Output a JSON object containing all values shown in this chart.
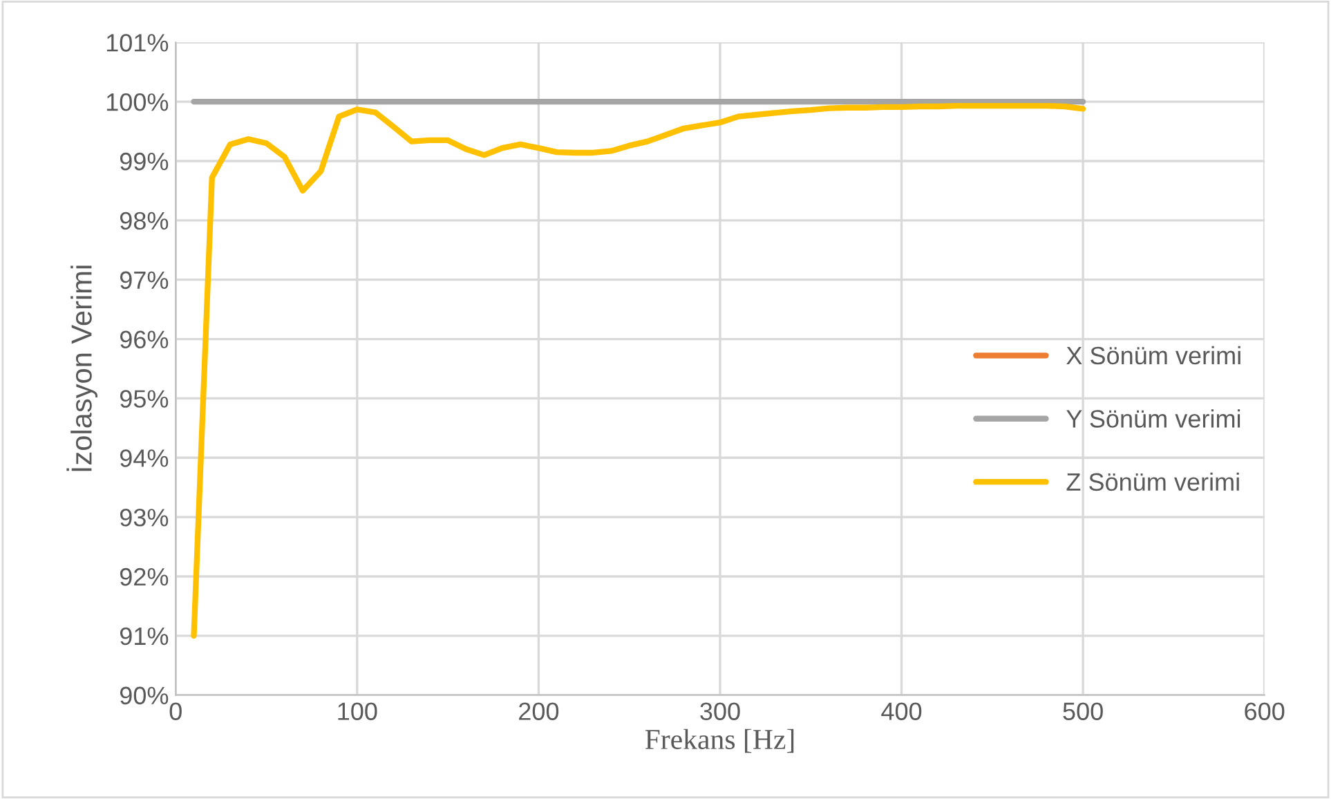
{
  "chart_data": {
    "type": "line",
    "xlabel": "Frekans [Hz]",
    "ylabel": "İzolasyon Verimi",
    "x": [
      10,
      20,
      30,
      40,
      50,
      60,
      70,
      80,
      90,
      100,
      110,
      120,
      130,
      140,
      150,
      160,
      170,
      180,
      190,
      200,
      210,
      220,
      230,
      240,
      250,
      260,
      270,
      280,
      290,
      300,
      310,
      320,
      330,
      340,
      350,
      360,
      370,
      380,
      390,
      400,
      410,
      420,
      430,
      440,
      450,
      460,
      470,
      480,
      490,
      500
    ],
    "series": [
      {
        "name": "X Sönüm verimi",
        "color": "#ed7d31",
        "values": [
          null,
          null,
          null,
          null,
          null,
          null,
          null,
          null,
          null,
          null,
          null,
          null,
          null,
          null,
          null,
          null,
          null,
          null,
          null,
          null,
          null,
          null,
          null,
          null,
          null,
          null,
          null,
          null,
          null,
          null,
          null,
          null,
          null,
          null,
          null,
          null,
          null,
          null,
          null,
          null,
          null,
          null,
          null,
          null,
          null,
          null,
          null,
          null,
          null,
          null
        ]
      },
      {
        "name": "Y Sönüm verimi",
        "color": "#a5a5a5",
        "values": [
          100,
          100,
          100,
          100,
          100,
          100,
          100,
          100,
          100,
          100,
          100,
          100,
          100,
          100,
          100,
          100,
          100,
          100,
          100,
          100,
          100,
          100,
          100,
          100,
          100,
          100,
          100,
          100,
          100,
          100,
          100,
          100,
          100,
          100,
          100,
          100,
          100,
          100,
          100,
          100,
          100,
          100,
          100,
          100,
          100,
          100,
          100,
          100,
          100,
          100
        ]
      },
      {
        "name": "Z Sönüm verimi",
        "color": "#ffc000",
        "values": [
          91.0,
          98.72,
          99.28,
          99.37,
          99.3,
          99.07,
          98.5,
          98.83,
          99.75,
          99.87,
          99.82,
          99.58,
          99.33,
          99.35,
          99.35,
          99.2,
          99.1,
          99.22,
          99.28,
          99.22,
          99.15,
          99.14,
          99.14,
          99.17,
          99.26,
          99.33,
          99.44,
          99.55,
          99.6,
          99.65,
          99.75,
          99.78,
          99.81,
          99.84,
          99.86,
          99.89,
          99.9,
          99.9,
          99.91,
          99.91,
          99.92,
          99.92,
          99.93,
          99.93,
          99.93,
          99.93,
          99.93,
          99.93,
          99.92,
          99.88
        ]
      }
    ],
    "xlim": [
      0,
      600
    ],
    "xticks": [
      0,
      100,
      200,
      300,
      400,
      500,
      600
    ],
    "ylim": [
      90,
      101
    ],
    "yticks": [
      {
        "value": 90,
        "label": "90%"
      },
      {
        "value": 91,
        "label": "91%"
      },
      {
        "value": 92,
        "label": "92%"
      },
      {
        "value": 93,
        "label": "93%"
      },
      {
        "value": 94,
        "label": "94%"
      },
      {
        "value": 95,
        "label": "95%"
      },
      {
        "value": 96,
        "label": "96%"
      },
      {
        "value": 97,
        "label": "97%"
      },
      {
        "value": 98,
        "label": "98%"
      },
      {
        "value": 99,
        "label": "99%"
      },
      {
        "value": 100,
        "label": "100%"
      },
      {
        "value": 101,
        "label": "101%"
      }
    ],
    "grid": true,
    "legend": "right",
    "marker": "none",
    "line_style": "solid"
  }
}
